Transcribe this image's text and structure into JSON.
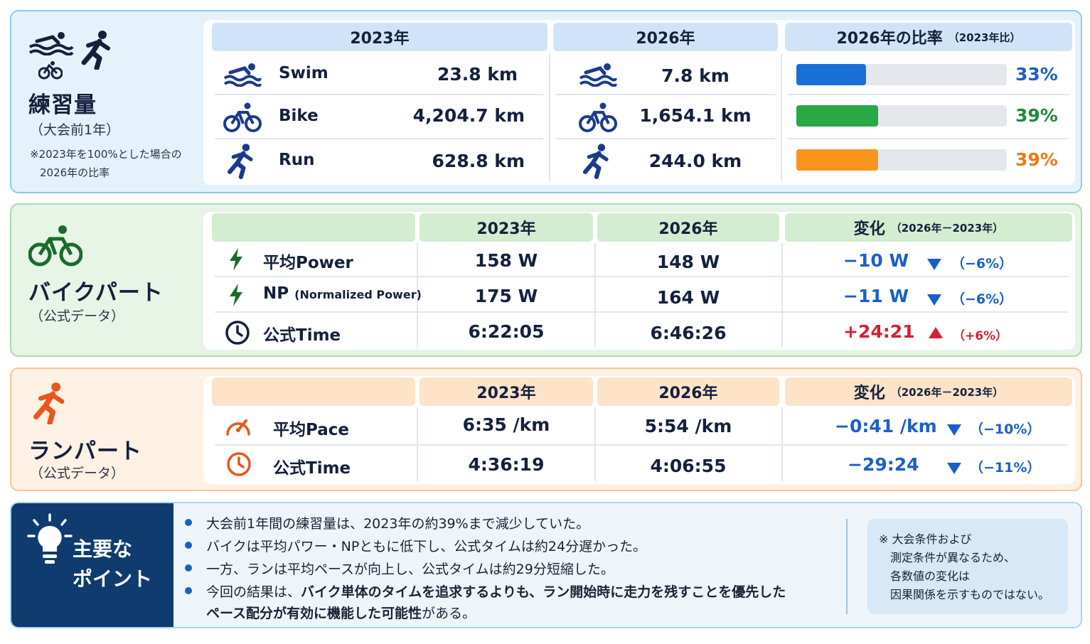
{
  "colors": {
    "swim_bar": "#1a6fd6",
    "bike_bar": "#28a745",
    "run_bar": "#f7941d",
    "decrease": "#1a5fc8",
    "increase": "#d61f32"
  },
  "training": {
    "title": "練習量",
    "subtitle": "（大会前1年）",
    "note_line1": "※2023年を100%とした場合の",
    "note_line2": "2026年の比率",
    "header_2023": "2023年",
    "header_2026": "2026年",
    "header_ratio": "2026年の比率",
    "header_ratio_sub": "（2023年比）",
    "rows": [
      {
        "icon": "swim-icon",
        "label": "Swim",
        "v2023": "23.8 km",
        "v2026": "7.8 km",
        "ratio": 0.33,
        "ratio_label": "33%"
      },
      {
        "icon": "bike-icon",
        "label": "Bike",
        "v2023": "4,204.7 km",
        "v2026": "1,654.1 km",
        "ratio": 0.39,
        "ratio_label": "39%"
      },
      {
        "icon": "run-icon",
        "label": "Run",
        "v2023": "628.8 km",
        "v2026": "244.0 km",
        "ratio": 0.39,
        "ratio_label": "39%"
      }
    ]
  },
  "bike": {
    "title": "バイクパート",
    "subtitle": "（公式データ）",
    "header_2023": "2023年",
    "header_2026": "2026年",
    "header_change": "変化",
    "header_change_sub": "（2026年－2023年）",
    "rows": [
      {
        "icon": "lightning-icon",
        "label": "平均Power",
        "label_sub": "",
        "v2023": "158 W",
        "v2026": "148 W",
        "change": "−10 W",
        "direction": "down",
        "change_pct": "（−6%）"
      },
      {
        "icon": "lightning-icon",
        "label": "NP",
        "label_sub": "(Normalized Power)",
        "v2023": "175 W",
        "v2026": "164 W",
        "change": "−11 W",
        "direction": "down",
        "change_pct": "（−6%）"
      },
      {
        "icon": "clock-icon",
        "label": "公式Time",
        "label_sub": "",
        "v2023": "6:22:05",
        "v2026": "6:46:26",
        "change": "+24:21",
        "direction": "up",
        "change_pct": "（+6%）"
      }
    ]
  },
  "run": {
    "title": "ランパート",
    "subtitle": "（公式データ）",
    "header_2023": "2023年",
    "header_2026": "2026年",
    "header_change": "変化",
    "header_change_sub": "（2026年－2023年）",
    "rows": [
      {
        "icon": "gauge-icon",
        "label": "平均Pace",
        "v2023": "6:35 /km",
        "v2026": "5:54 /km",
        "change": "−0:41 /km",
        "direction": "down",
        "change_pct": "（−10%）"
      },
      {
        "icon": "clock-icon",
        "label": "公式Time",
        "v2023": "4:36:19",
        "v2026": "4:06:55",
        "change": "−29:24",
        "direction": "down",
        "change_pct": "（−11%）"
      }
    ]
  },
  "points": {
    "title": "主要な\nポイント",
    "b1": "大会前1年間の練習量は、2023年の約39%まで減少していた。",
    "b2": "バイクは平均パワー・NPともに低下し、公式タイムは約24分遅かった。",
    "b3": "一方、ランは平均ペースが向上し、公式タイムは約29分短縮した。",
    "b4_pre": "今回の結果は、",
    "b4_bold": "バイク単体のタイムを追求するよりも、ラン開始時に走力を残すことを優先した",
    "b5_bold": "ペース配分が有効に機能した可能性",
    "b5_post": "がある。",
    "note": "※ 大会条件および\n　測定条件が異なるため、\n　各数値の変化は\n　因果関係を示すものではない。"
  }
}
